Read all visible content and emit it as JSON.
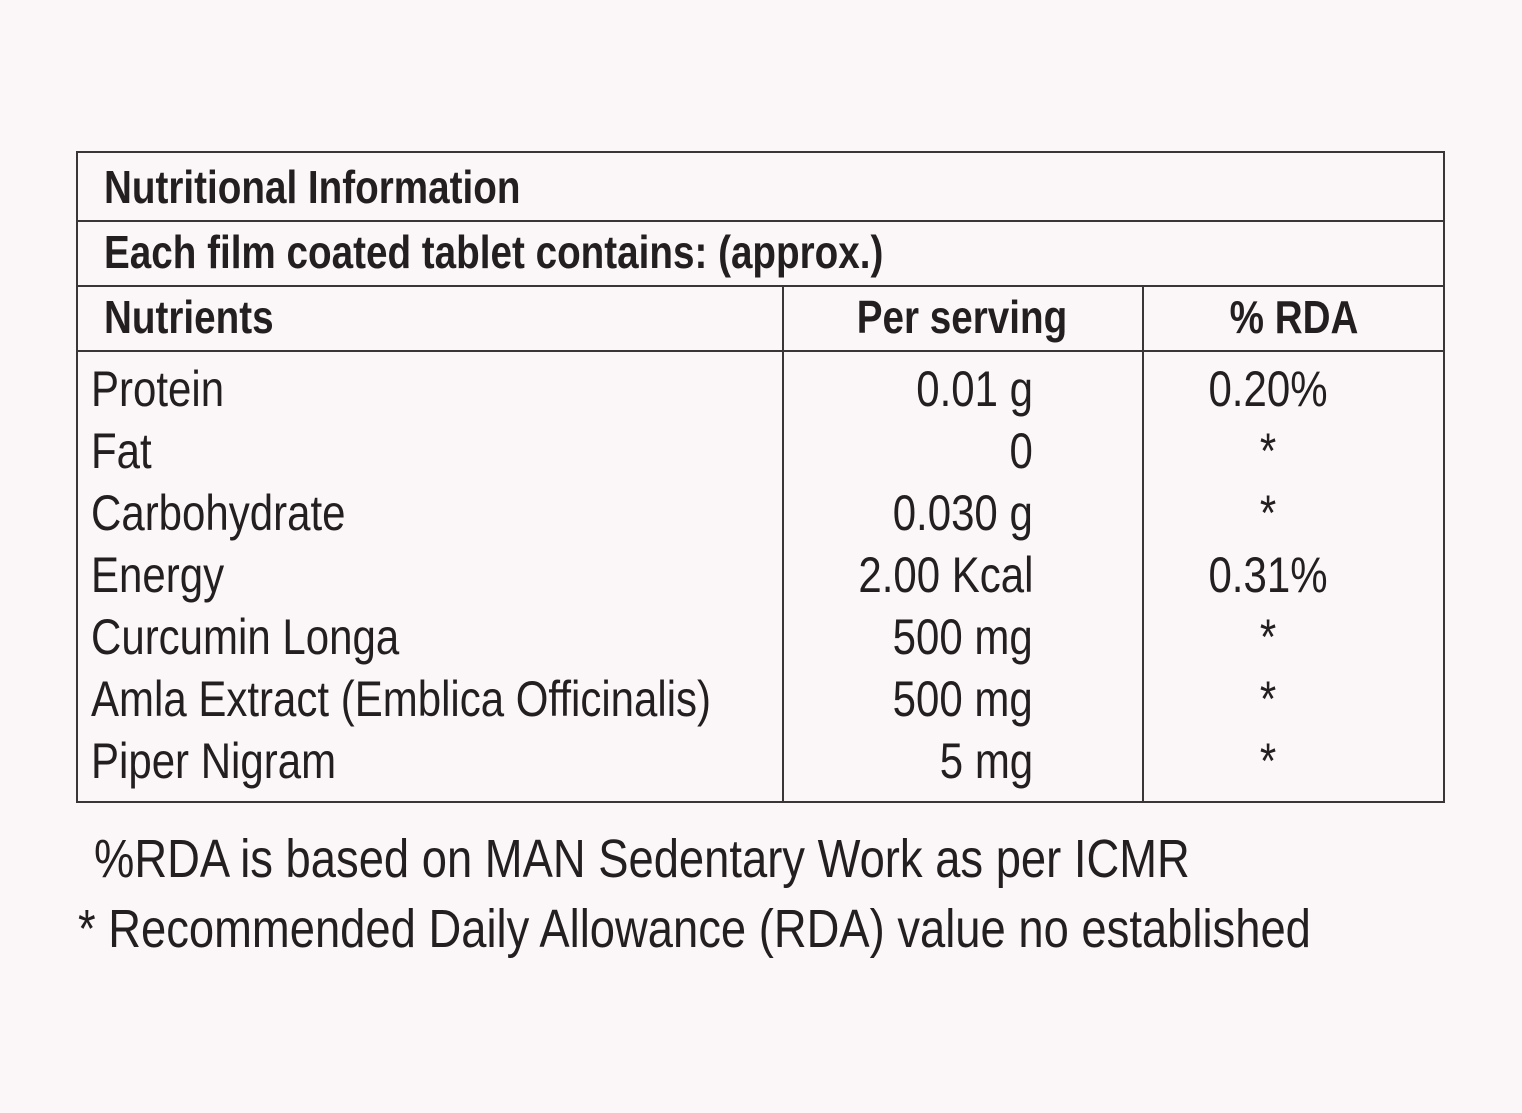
{
  "table": {
    "title": "Nutritional Information",
    "subtitle": "Each film coated tablet contains: (approx.)",
    "columns": {
      "nutrients": "Nutrients",
      "per_serving": "Per serving",
      "rda": "% RDA"
    },
    "rows": [
      {
        "name": "Protein",
        "per_serving": "0.01 g",
        "rda": "0.20%"
      },
      {
        "name": "Fat",
        "per_serving": "0",
        "rda": "*"
      },
      {
        "name": "Carbohydrate",
        "per_serving": "0.030 g",
        "rda": "*"
      },
      {
        "name": "Energy",
        "per_serving": "2.00 Kcal",
        "rda": "0.31%"
      },
      {
        "name": "Curcumin Longa",
        "per_serving": "500 mg",
        "rda": "*"
      },
      {
        "name": "Amla Extract (Emblica Officinalis)",
        "per_serving": "500 mg",
        "rda": "*"
      },
      {
        "name": "Piper Nigram",
        "per_serving": "5 mg",
        "rda": "*"
      }
    ]
  },
  "footnotes": {
    "basis": "%RDA is based on MAN Sedentary Work as per ICMR",
    "asterisk": "* Recommended Daily Allowance (RDA) value no established"
  }
}
